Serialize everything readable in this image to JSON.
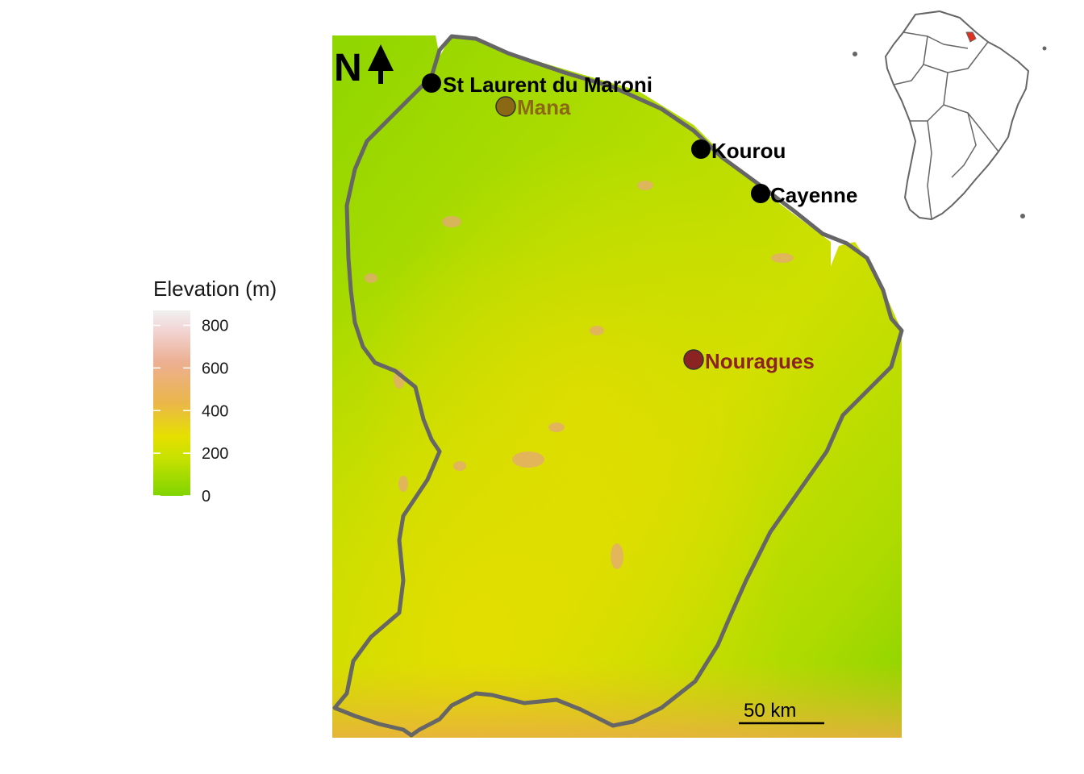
{
  "legend": {
    "title": "Elevation (m)",
    "ticks": [
      {
        "label": "800",
        "value": 800
      },
      {
        "label": "600",
        "value": 600
      },
      {
        "label": "400",
        "value": 400
      },
      {
        "label": "200",
        "value": 200
      },
      {
        "label": "0",
        "value": 0
      }
    ],
    "min": 0,
    "max": 870,
    "colors": [
      "#7fd400",
      "#c6e100",
      "#e6e000",
      "#eab64a",
      "#ecaf92",
      "#f0f0f0"
    ]
  },
  "places": [
    {
      "name": "St Laurent du Maroni",
      "color": "#000000",
      "marker_fill": "#000000"
    },
    {
      "name": "Mana",
      "color": "#8b6914",
      "marker_fill": "#8b6914"
    },
    {
      "name": "Kourou",
      "color": "#000000",
      "marker_fill": "#000000"
    },
    {
      "name": "Cayenne",
      "color": "#000000",
      "marker_fill": "#000000"
    },
    {
      "name": "Nouragues",
      "color": "#8b2323",
      "marker_fill": "#8b2323"
    }
  ],
  "scale_bar": {
    "label": "50 km"
  },
  "north_arrow": {
    "label": "N"
  },
  "border_color": "#666666",
  "inset_highlight_color": "#e0301e"
}
